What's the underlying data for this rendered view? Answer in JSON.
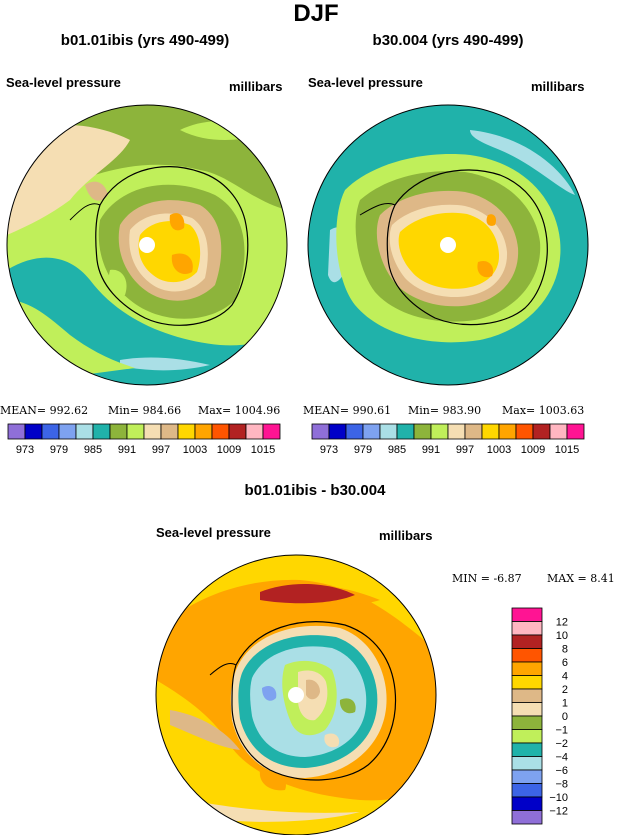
{
  "title": "DJF",
  "panels": [
    {
      "title": "b01.01ibis (yrs 490-499)",
      "variable": "Sea-level pressure",
      "units": "millibars",
      "stats": {
        "mean_label": "MEAN=",
        "mean": "992.62",
        "min_label": "Min=",
        "min": "984.66",
        "max_label": "Max=",
        "max": "1004.96"
      }
    },
    {
      "title": "b30.004 (yrs 490-499)",
      "variable": "Sea-level pressure",
      "units": "millibars",
      "stats": {
        "mean_label": "MEAN=",
        "mean": "990.61",
        "min_label": "Min=",
        "min": "983.90",
        "max_label": "Max=",
        "max": "1003.63"
      }
    },
    {
      "title": "b01.01ibis - b30.004",
      "variable": "Sea-level pressure",
      "units": "millibars",
      "stats": {
        "min_label": "MIN =",
        "min": "-6.87",
        "max_label": "MAX =",
        "max": "8.41"
      }
    }
  ],
  "chart_data": [
    {
      "type": "heatmap",
      "projection": "south-polar-stereographic",
      "title": "b01.01ibis (yrs 490-499)",
      "variable": "Sea-level pressure",
      "units": "millibars",
      "levels": [
        973,
        976,
        979,
        982,
        985,
        988,
        991,
        994,
        997,
        1000,
        1003,
        1006,
        1009,
        1012,
        1015
      ],
      "tick_labels": [
        "973",
        "979",
        "985",
        "991",
        "997",
        "1003",
        "1009",
        "1015"
      ],
      "mean": 992.62,
      "min": 984.66,
      "max": 1004.96
    },
    {
      "type": "heatmap",
      "projection": "south-polar-stereographic",
      "title": "b30.004 (yrs 490-499)",
      "variable": "Sea-level pressure",
      "units": "millibars",
      "levels": [
        973,
        976,
        979,
        982,
        985,
        988,
        991,
        994,
        997,
        1000,
        1003,
        1006,
        1009,
        1012,
        1015
      ],
      "tick_labels": [
        "973",
        "979",
        "985",
        "991",
        "997",
        "1003",
        "1009",
        "1015"
      ],
      "mean": 990.61,
      "min": 983.9,
      "max": 1003.63
    },
    {
      "type": "heatmap",
      "projection": "south-polar-stereographic",
      "title": "b01.01ibis - b30.004",
      "variable": "Sea-level pressure",
      "units": "millibars",
      "levels": [
        -12,
        -10,
        -8,
        -6,
        -4,
        -2,
        -1,
        0,
        1,
        2,
        4,
        6,
        8,
        10,
        12
      ],
      "tick_labels": [
        "12",
        "10",
        "8",
        "6",
        "4",
        "2",
        "1",
        "0",
        "−1",
        "−2",
        "−4",
        "−6",
        "−8",
        "−10",
        "−12"
      ],
      "min": -6.87,
      "max": 8.41
    }
  ],
  "colors": {
    "abs_palette": [
      "#8f6fd8",
      "#0000c8",
      "#3c64e6",
      "#7ea2f0",
      "#aadfe6",
      "#20b2aa",
      "#8db43b",
      "#c0ef5a",
      "#f5deb3",
      "#deb887",
      "#ffd700",
      "#ffa500",
      "#ff5500",
      "#b22222",
      "#ffb6c1",
      "#ff1493"
    ],
    "diff_palette": [
      "#ff1493",
      "#ffb6c1",
      "#b22222",
      "#ff5500",
      "#ffa500",
      "#ffd700",
      "#deb887",
      "#f5deb3",
      "#8db43b",
      "#c0ef5a",
      "#20b2aa",
      "#aadfe6",
      "#7ea2f0",
      "#3c64e6",
      "#0000c8",
      "#8f6fd8"
    ]
  }
}
